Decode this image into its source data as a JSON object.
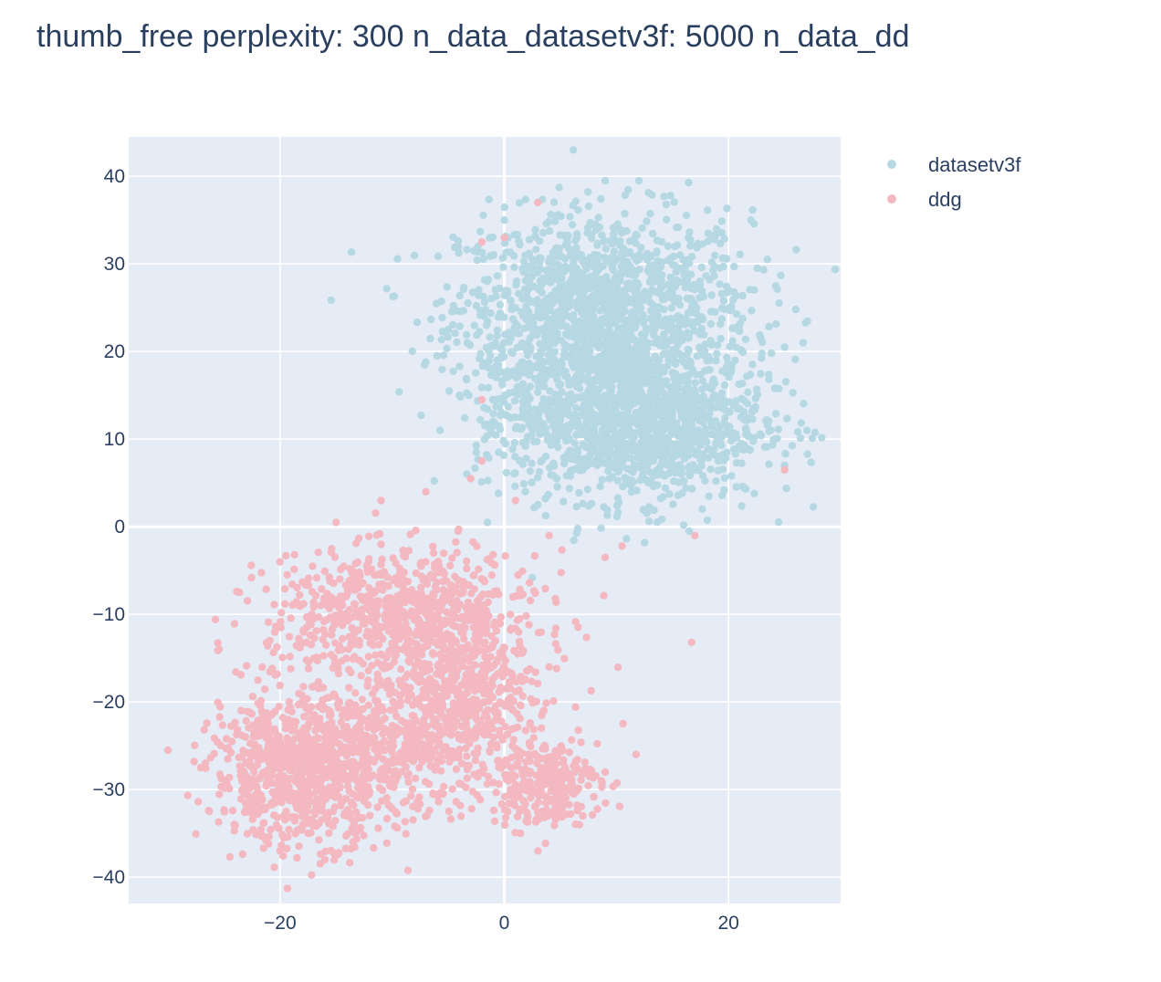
{
  "chart_data": {
    "type": "scatter",
    "title": "thumb_free  perplexity: 300  n_data_datasetv3f: 5000  n_data_dd",
    "xlabel": "",
    "ylabel": "",
    "xlim": [
      -33.5,
      30
    ],
    "ylim": [
      -43,
      44.5
    ],
    "x_ticks": [
      -20,
      0,
      20
    ],
    "x_tick_labels": [
      "−20",
      "0",
      "20"
    ],
    "y_ticks": [
      -40,
      -30,
      -20,
      -10,
      0,
      10,
      20,
      30,
      40
    ],
    "y_tick_labels": [
      "−40",
      "−30",
      "−20",
      "−10",
      "0",
      "10",
      "20",
      "30",
      "40"
    ],
    "grid": true,
    "legend_position": "top-right",
    "plot_background": "#e5ecf6",
    "grid_color": "#ffffff",
    "series": [
      {
        "name": "datasetv3f",
        "color": "#b5d8e3",
        "n_points": 5000,
        "clusters": [
          {
            "center": [
              9,
              25
            ],
            "spread": [
              6.5,
              5.5
            ],
            "weight": 0.45
          },
          {
            "center": [
              12,
              12
            ],
            "spread": [
              5.5,
              4.5
            ],
            "weight": 0.45
          },
          {
            "center": [
              4,
              18
            ],
            "spread": [
              4,
              6
            ],
            "weight": 0.1
          }
        ],
        "points": [
          [
            -7,
            18.8
          ],
          [
            -6,
            19.5
          ],
          [
            -5,
            22.5
          ],
          [
            0,
            35
          ],
          [
            9,
            39.5
          ],
          [
            12,
            39.5
          ],
          [
            22,
            35
          ],
          [
            26,
            24.8
          ],
          [
            25,
            20.5
          ],
          [
            27,
            11
          ],
          [
            25,
            7
          ],
          [
            16,
            0.2
          ],
          [
            16.5,
            -0.5
          ],
          [
            2.5,
            -5.8
          ],
          [
            -1.5,
            0.5
          ],
          [
            -0.5,
            8.5
          ],
          [
            -1,
            12
          ],
          [
            -2.5,
            8.5
          ],
          [
            -4,
            15
          ]
        ]
      },
      {
        "name": "ddg",
        "color": "#f4b8c1",
        "n_points": 5000,
        "clusters": [
          {
            "center": [
              -9,
              -10
            ],
            "spread": [
              6,
              3.5
            ],
            "weight": 0.28
          },
          {
            "center": [
              -18,
              -28
            ],
            "spread": [
              4,
              4
            ],
            "weight": 0.3
          },
          {
            "center": [
              -9,
              -24
            ],
            "spread": [
              5.5,
              4.5
            ],
            "weight": 0.2
          },
          {
            "center": [
              -3,
              -19
            ],
            "spread": [
              3,
              3.5
            ],
            "weight": 0.12
          },
          {
            "center": [
              3.5,
              -29
            ],
            "spread": [
              2.5,
              2.5
            ],
            "weight": 0.1
          }
        ],
        "points": [
          [
            -30,
            -25.5
          ],
          [
            -20,
            -37
          ],
          [
            -16,
            -38
          ],
          [
            -20,
            -4
          ],
          [
            -15,
            0.5
          ],
          [
            -7,
            -4
          ],
          [
            -11,
            3
          ],
          [
            -7,
            4
          ],
          [
            -3,
            5.5
          ],
          [
            -2,
            7.5
          ],
          [
            0,
            33
          ],
          [
            -2,
            32.5
          ],
          [
            3,
            37
          ],
          [
            1,
            3
          ],
          [
            4,
            -1
          ],
          [
            9,
            -3.5
          ],
          [
            10.5,
            -2.2
          ],
          [
            17,
            -1
          ],
          [
            25,
            6.5
          ],
          [
            9,
            -28
          ],
          [
            6.5,
            -30
          ],
          [
            7,
            -33
          ],
          [
            3,
            -37
          ],
          [
            -2,
            14.5
          ],
          [
            -11,
            -2
          ],
          [
            4,
            -16
          ]
        ]
      }
    ]
  }
}
